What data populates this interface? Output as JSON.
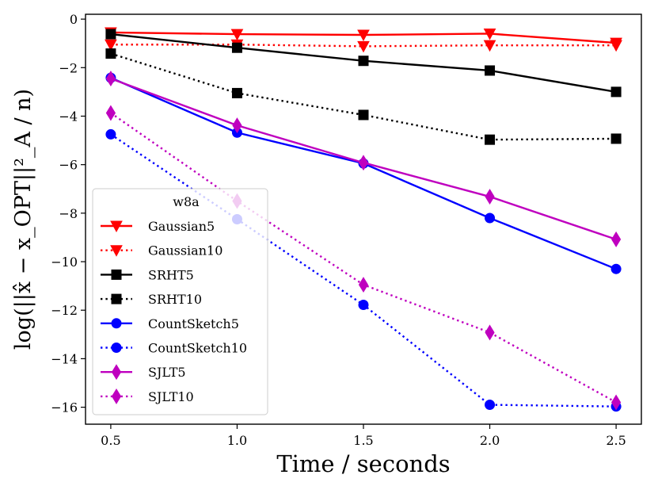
{
  "chart_data": {
    "type": "line",
    "title": "",
    "xlabel": "Time / seconds",
    "ylabel": "log(||x̂ − x_OPT||²_A / n)",
    "xlim": [
      0.4,
      2.6
    ],
    "ylim": [
      -16.7,
      0.2
    ],
    "xticks": [
      0.5,
      1.0,
      1.5,
      2.0,
      2.5
    ],
    "xtick_labels": [
      "0.5",
      "1.0",
      "1.5",
      "2.0",
      "2.5"
    ],
    "yticks": [
      0,
      -2,
      -4,
      -6,
      -8,
      -10,
      -12,
      -14,
      -16
    ],
    "ytick_labels": [
      "0",
      "−2",
      "−4",
      "−6",
      "−8",
      "−10",
      "−12",
      "−14",
      "−16"
    ],
    "legend_title": "w8a",
    "legend_position": "lower-left",
    "series": [
      {
        "name": "Gaussian5",
        "color": "#ff0000",
        "style": "solid",
        "marker": "triangle-down",
        "x": [
          0.5,
          1.0,
          1.5,
          2.0,
          2.5
        ],
        "y": [
          -0.55,
          -0.62,
          -0.65,
          -0.6,
          -0.98
        ]
      },
      {
        "name": "Gaussian10",
        "color": "#ff0000",
        "style": "dotted",
        "marker": "triangle-down",
        "x": [
          0.5,
          1.0,
          1.5,
          2.0,
          2.5
        ],
        "y": [
          -1.05,
          -1.05,
          -1.12,
          -1.08,
          -1.08
        ]
      },
      {
        "name": "SRHT5",
        "color": "#000000",
        "style": "solid",
        "marker": "square",
        "x": [
          0.5,
          1.0,
          1.5,
          2.0,
          2.5
        ],
        "y": [
          -0.62,
          -1.18,
          -1.72,
          -2.12,
          -3.0
        ]
      },
      {
        "name": "SRHT10",
        "color": "#000000",
        "style": "dotted",
        "marker": "square",
        "x": [
          0.5,
          1.0,
          1.5,
          2.0,
          2.5
        ],
        "y": [
          -1.42,
          -3.05,
          -3.95,
          -4.97,
          -4.93
        ]
      },
      {
        "name": "CountSketch5",
        "color": "#0000ff",
        "style": "solid",
        "marker": "circle",
        "x": [
          0.5,
          1.0,
          1.5,
          2.0,
          2.5
        ],
        "y": [
          -2.42,
          -4.68,
          -5.95,
          -8.2,
          -10.3
        ]
      },
      {
        "name": "CountSketch10",
        "color": "#0000ff",
        "style": "dotted",
        "marker": "circle",
        "x": [
          0.5,
          1.0,
          1.5,
          2.0,
          2.5
        ],
        "y": [
          -4.75,
          -8.25,
          -11.78,
          -15.9,
          -15.97
        ]
      },
      {
        "name": "SJLT5",
        "color": "#bf00bf",
        "style": "solid",
        "marker": "diamond",
        "x": [
          0.5,
          1.0,
          1.5,
          2.0,
          2.5
        ],
        "y": [
          -2.45,
          -4.38,
          -5.92,
          -7.32,
          -9.08
        ]
      },
      {
        "name": "SJLT10",
        "color": "#bf00bf",
        "style": "dotted",
        "marker": "diamond",
        "x": [
          0.5,
          1.0,
          1.5,
          2.0,
          2.5
        ],
        "y": [
          -3.87,
          -7.5,
          -10.95,
          -12.92,
          -15.8
        ]
      }
    ]
  }
}
